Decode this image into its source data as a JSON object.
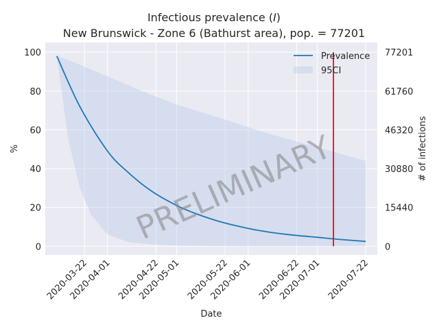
{
  "chart_data": {
    "type": "line",
    "title_line1": "Infectious prevalence (",
    "title_var": "I",
    "title_line1_end": ")",
    "title_line2": "New Brunswick - Zone 6 (Bathurst area), pop. = 77201",
    "xlabel": "Date",
    "ylabel": "%",
    "ylabel_right": "# of infections",
    "watermark": "PRELIMINARY",
    "ylim": [
      -4.5,
      105
    ],
    "y_ticks": [
      0,
      20,
      40,
      60,
      80,
      100
    ],
    "y_ticks_right": [
      {
        "value": 0,
        "label": "0"
      },
      {
        "value": 20,
        "label": "15440"
      },
      {
        "value": 40,
        "label": "30880"
      },
      {
        "value": 60,
        "label": "46320"
      },
      {
        "value": 80,
        "label": "61760"
      },
      {
        "value": 100,
        "label": "77201"
      }
    ],
    "x_range": [
      "2020-03-05",
      "2020-07-27"
    ],
    "x_ticks": [
      "2020-03-22",
      "2020-04-01",
      "2020-04-22",
      "2020-05-01",
      "2020-05-22",
      "2020-06-01",
      "2020-06-22",
      "2020-07-01",
      "2020-07-22"
    ],
    "grid": true,
    "legend_position": "top-right",
    "series": [
      {
        "name": "Prevalence",
        "kind": "line",
        "color": "#1f77b4",
        "x": [
          "2020-03-10",
          "2020-03-20",
          "2020-04-01",
          "2020-04-10",
          "2020-04-20",
          "2020-05-01",
          "2020-05-10",
          "2020-05-20",
          "2020-06-01",
          "2020-06-10",
          "2020-06-20",
          "2020-07-01",
          "2020-07-10",
          "2020-07-22"
        ],
        "values": [
          98,
          72,
          49,
          38,
          28.5,
          21,
          16.5,
          12.6,
          9.2,
          7.3,
          5.8,
          4.6,
          3.6,
          2.5
        ]
      },
      {
        "name": "95CI",
        "kind": "band",
        "color": "#aec7e8",
        "x": [
          "2020-03-10",
          "2020-03-15",
          "2020-03-20",
          "2020-03-25",
          "2020-04-01",
          "2020-04-10",
          "2020-04-20",
          "2020-05-01",
          "2020-05-20",
          "2020-06-10",
          "2020-07-01",
          "2020-07-22"
        ],
        "lower": [
          98,
          55,
          30,
          16,
          6,
          2.2,
          1,
          0.3,
          0.05,
          0,
          0,
          0
        ],
        "upper": [
          98,
          96,
          93.5,
          91,
          87.5,
          83,
          78,
          73,
          66,
          58,
          51,
          44
        ]
      }
    ],
    "vline": {
      "x": "2020-07-08",
      "color": "#ff0000",
      "y_range": [
        0,
        100
      ]
    }
  }
}
